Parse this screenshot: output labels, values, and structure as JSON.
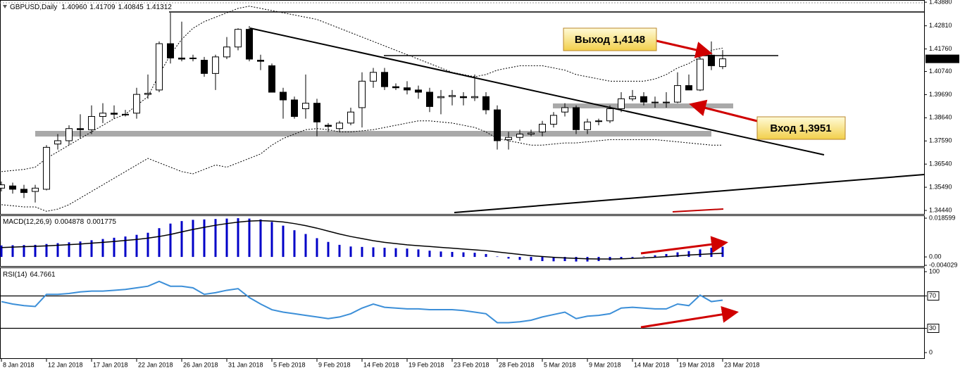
{
  "chart_data": [
    {
      "type": "candlestick",
      "title": "GBPUSD,Daily",
      "header_values": [
        {
          "value": 1.4096,
          "label": "1.40960"
        },
        {
          "value": 1.41709,
          "label": "1.41709"
        },
        {
          "value": 1.40845,
          "label": "1.40845"
        },
        {
          "value": 1.41312,
          "label": "1.41312"
        }
      ],
      "categories": [
        "8 Jan 2018",
        null,
        null,
        null,
        "12 Jan 2018",
        null,
        null,
        null,
        "17 Jan 2018",
        null,
        null,
        null,
        "22 Jan 2018",
        null,
        null,
        null,
        "26 Jan 2018",
        null,
        null,
        null,
        "31 Jan 2018",
        null,
        null,
        null,
        "5 Feb 2018",
        null,
        null,
        null,
        "9 Feb 2018",
        null,
        null,
        null,
        "14 Feb 2018",
        null,
        null,
        null,
        "19 Feb 2018",
        null,
        null,
        null,
        "23 Feb 2018",
        null,
        null,
        null,
        "28 Feb 2018",
        null,
        null,
        null,
        "5 Mar 2018",
        null,
        null,
        null,
        "9 Mar 2018",
        null,
        null,
        null,
        "14 Mar 2018",
        null,
        null,
        null,
        "19 Mar 2018",
        null,
        null,
        null,
        "23 Mar 2018"
      ],
      "ohlc": [
        [
          1.3545,
          1.3575,
          1.353,
          1.356
        ],
        [
          1.3555,
          1.357,
          1.352,
          1.354
        ],
        [
          1.354,
          1.356,
          1.35,
          1.3525
        ],
        [
          1.353,
          1.356,
          1.348,
          1.3545
        ],
        [
          1.354,
          1.374,
          1.3535,
          1.373
        ],
        [
          1.3745,
          1.379,
          1.372,
          1.376
        ],
        [
          1.376,
          1.383,
          1.374,
          1.3815
        ],
        [
          1.3815,
          1.388,
          1.377,
          1.381
        ],
        [
          1.381,
          1.392,
          1.379,
          1.387
        ],
        [
          1.387,
          1.393,
          1.384,
          1.3885
        ],
        [
          1.3885,
          1.392,
          1.386,
          1.388
        ],
        [
          1.388,
          1.39,
          1.387,
          1.388
        ],
        [
          1.3885,
          1.4,
          1.386,
          1.397
        ],
        [
          1.397,
          1.406,
          1.395,
          1.3975
        ],
        [
          1.399,
          1.421,
          1.398,
          1.42
        ],
        [
          1.42,
          1.434,
          1.411,
          1.4135
        ],
        [
          1.4135,
          1.43,
          1.412,
          1.413
        ],
        [
          1.4135,
          1.415,
          1.412,
          1.4135
        ],
        [
          1.4125,
          1.414,
          1.405,
          1.4065
        ],
        [
          1.4065,
          1.415,
          1.399,
          1.414
        ],
        [
          1.414,
          1.423,
          1.413,
          1.4185
        ],
        [
          1.4185,
          1.427,
          1.417,
          1.4265
        ],
        [
          1.4265,
          1.428,
          1.412,
          1.413
        ],
        [
          1.4125,
          1.415,
          1.408,
          1.412
        ],
        [
          1.41,
          1.411,
          1.398,
          1.398
        ],
        [
          1.398,
          1.4,
          1.386,
          1.3945
        ],
        [
          1.3945,
          1.396,
          1.386,
          1.387
        ],
        [
          1.3905,
          1.406,
          1.386,
          1.393
        ],
        [
          1.393,
          1.395,
          1.378,
          1.3845
        ],
        [
          1.383,
          1.384,
          1.38,
          1.3825
        ],
        [
          1.3815,
          1.385,
          1.38,
          1.384
        ],
        [
          1.384,
          1.391,
          1.383,
          1.389
        ],
        [
          1.391,
          1.407,
          1.382,
          1.403
        ],
        [
          1.403,
          1.409,
          1.4,
          1.407
        ],
        [
          1.407,
          1.409,
          1.399,
          1.4005
        ],
        [
          1.4005,
          1.402,
          1.399,
          1.4
        ],
        [
          1.4,
          1.403,
          1.397,
          1.399
        ],
        [
          1.399,
          1.401,
          1.395,
          1.398
        ],
        [
          1.398,
          1.4,
          1.389,
          1.3915
        ],
        [
          1.3955,
          1.399,
          1.388,
          1.396
        ],
        [
          1.396,
          1.399,
          1.392,
          1.3965
        ],
        [
          1.396,
          1.398,
          1.392,
          1.3955
        ],
        [
          1.3955,
          1.406,
          1.394,
          1.396
        ],
        [
          1.396,
          1.398,
          1.388,
          1.39
        ],
        [
          1.39,
          1.392,
          1.372,
          1.376
        ],
        [
          1.3765,
          1.38,
          1.372,
          1.3775
        ],
        [
          1.3775,
          1.381,
          1.376,
          1.379
        ],
        [
          1.379,
          1.381,
          1.378,
          1.3795
        ],
        [
          1.38,
          1.385,
          1.378,
          1.3835
        ],
        [
          1.3835,
          1.389,
          1.382,
          1.3875
        ],
        [
          1.389,
          1.393,
          1.387,
          1.391
        ],
        [
          1.391,
          1.392,
          1.379,
          1.381
        ],
        [
          1.381,
          1.386,
          1.379,
          1.3845
        ],
        [
          1.385,
          1.386,
          1.383,
          1.385
        ],
        [
          1.385,
          1.392,
          1.384,
          1.3905
        ],
        [
          1.3905,
          1.398,
          1.389,
          1.395
        ],
        [
          1.395,
          1.399,
          1.394,
          1.396
        ],
        [
          1.396,
          1.398,
          1.392,
          1.3935
        ],
        [
          1.3935,
          1.396,
          1.391,
          1.3935
        ],
        [
          1.3935,
          1.398,
          1.391,
          1.3935
        ],
        [
          1.3935,
          1.407,
          1.393,
          1.401
        ],
        [
          1.401,
          1.406,
          1.399,
          1.399
        ],
        [
          1.399,
          1.414,
          1.3985,
          1.413
        ],
        [
          1.4148,
          1.421,
          1.408,
          1.41
        ],
        [
          1.4096,
          1.41709,
          1.40845,
          1.41312
        ]
      ],
      "bands": {
        "upper": [
          1.362,
          1.3625,
          1.363,
          1.364,
          1.368,
          1.371,
          1.374,
          1.377,
          1.38,
          1.383,
          1.386,
          1.388,
          1.392,
          1.396,
          1.406,
          1.415,
          1.422,
          1.427,
          1.43,
          1.432,
          1.434,
          1.436,
          1.437,
          1.436,
          1.435,
          1.434,
          1.433,
          1.432,
          1.431,
          1.429,
          1.427,
          1.425,
          1.423,
          1.421,
          1.419,
          1.417,
          1.415,
          1.413,
          1.411,
          1.409,
          1.407,
          1.406,
          1.405,
          1.406,
          1.408,
          1.409,
          1.41,
          1.41,
          1.41,
          1.409,
          1.408,
          1.406,
          1.405,
          1.404,
          1.403,
          1.403,
          1.403,
          1.403,
          1.404,
          1.406,
          1.409,
          1.411,
          1.414,
          1.417,
          1.418
        ],
        "lower": [
          1.347,
          1.3465,
          1.346,
          1.346,
          1.344,
          1.345,
          1.347,
          1.35,
          1.353,
          1.356,
          1.359,
          1.362,
          1.365,
          1.368,
          1.366,
          1.364,
          1.362,
          1.361,
          1.363,
          1.365,
          1.364,
          1.366,
          1.368,
          1.37,
          1.374,
          1.377,
          1.379,
          1.381,
          1.3815,
          1.381,
          1.38,
          1.38,
          1.3805,
          1.381,
          1.382,
          1.383,
          1.384,
          1.385,
          1.385,
          1.3845,
          1.384,
          1.383,
          1.382,
          1.38,
          1.377,
          1.376,
          1.375,
          1.374,
          1.374,
          1.3745,
          1.375,
          1.375,
          1.3755,
          1.376,
          1.3765,
          1.3765,
          1.3765,
          1.3765,
          1.3765,
          1.376,
          1.3755,
          1.375,
          1.3745,
          1.374,
          1.374
        ]
      },
      "ylim": [
        1.3428,
        1.4398
      ],
      "yticks": [
        {
          "value": 1.3444,
          "label": "1.34440"
        },
        {
          "value": 1.3549,
          "label": "1.35490"
        },
        {
          "value": 1.3654,
          "label": "1.36540"
        },
        {
          "value": 1.3759,
          "label": "1.37590"
        },
        {
          "value": 1.3864,
          "label": "1.38640"
        },
        {
          "value": 1.3969,
          "label": "1.39690"
        },
        {
          "value": 1.4074,
          "label": "1.40740"
        },
        {
          "value": 1.4176,
          "label": "1.41760"
        },
        {
          "value": 1.4281,
          "label": "1.42810"
        },
        {
          "value": 1.4388,
          "label": "1.43880"
        }
      ],
      "annotations": [
        "Выход 1,4148",
        "Вход 1,3951"
      ]
    },
    {
      "type": "macd",
      "title": "MACD(12,26,9)",
      "color": "#0000c8",
      "values": [
        0.0055,
        0.0056,
        0.0057,
        0.0058,
        0.0062,
        0.0066,
        0.007,
        0.0074,
        0.008,
        0.0086,
        0.0092,
        0.0098,
        0.0106,
        0.0116,
        0.0138,
        0.016,
        0.0172,
        0.0178,
        0.018,
        0.0182,
        0.0184,
        0.0186,
        0.0184,
        0.018,
        0.0168,
        0.015,
        0.0128,
        0.011,
        0.009,
        0.0072,
        0.0058,
        0.005,
        0.0048,
        0.0046,
        0.0044,
        0.0042,
        0.004,
        0.0036,
        0.003,
        0.0026,
        0.0024,
        0.0022,
        0.002,
        0.0014,
        0.0002,
        -0.0008,
        -0.0014,
        -0.0018,
        -0.002,
        -0.0021,
        -0.002,
        -0.0022,
        -0.0022,
        -0.002,
        -0.0016,
        -0.001,
        -0.0004,
        0.0002,
        0.0008,
        0.0014,
        0.0022,
        0.0028,
        0.0036,
        0.0044,
        0.004878
      ],
      "signal": [
        0.0045,
        0.0047,
        0.0049,
        0.0051,
        0.0053,
        0.0056,
        0.0059,
        0.0062,
        0.0066,
        0.007,
        0.0074,
        0.0079,
        0.0084,
        0.009,
        0.0098,
        0.0108,
        0.012,
        0.0132,
        0.0142,
        0.0152,
        0.016,
        0.0167,
        0.0172,
        0.0174,
        0.0172,
        0.0168,
        0.016,
        0.015,
        0.0138,
        0.0124,
        0.011,
        0.0098,
        0.0088,
        0.0078,
        0.007,
        0.0064,
        0.0058,
        0.0054,
        0.005,
        0.0046,
        0.0042,
        0.0038,
        0.0034,
        0.003,
        0.0024,
        0.0018,
        0.0012,
        0.0006,
        0.0002,
        -0.0002,
        -0.0005,
        -0.0007,
        -0.0009,
        -0.001,
        -0.001,
        -0.0009,
        -0.0007,
        -0.0005,
        -0.0002,
        0.0001,
        0.0005,
        0.0009,
        0.0012,
        0.0015,
        0.001775
      ],
      "ylim": [
        -0.004029,
        0.018599
      ],
      "yticks": [
        0.018599,
        {
          "value": 0,
          "label": "0.00"
        },
        -0.004029
      ]
    },
    {
      "type": "line",
      "title": "RSI(14)",
      "color": "#3c8fd8",
      "values": [
        63,
        60,
        58,
        57,
        72,
        72,
        73,
        75,
        76,
        76,
        77,
        78,
        80,
        82,
        88,
        82,
        82,
        80,
        72,
        74,
        77,
        79,
        68,
        60,
        53,
        50,
        48,
        46,
        44,
        42,
        44,
        48,
        55,
        60,
        56,
        55,
        54,
        54,
        53,
        53,
        53,
        52,
        50,
        48,
        37,
        37,
        38,
        40,
        44,
        47,
        50,
        42,
        45,
        46,
        48,
        55,
        56,
        55,
        54,
        54,
        60,
        58,
        71,
        63,
        64.7661
      ],
      "ylim": [
        0,
        100
      ],
      "yticks": [
        100,
        70,
        30,
        0
      ],
      "levels": [
        70,
        30
      ]
    }
  ]
}
